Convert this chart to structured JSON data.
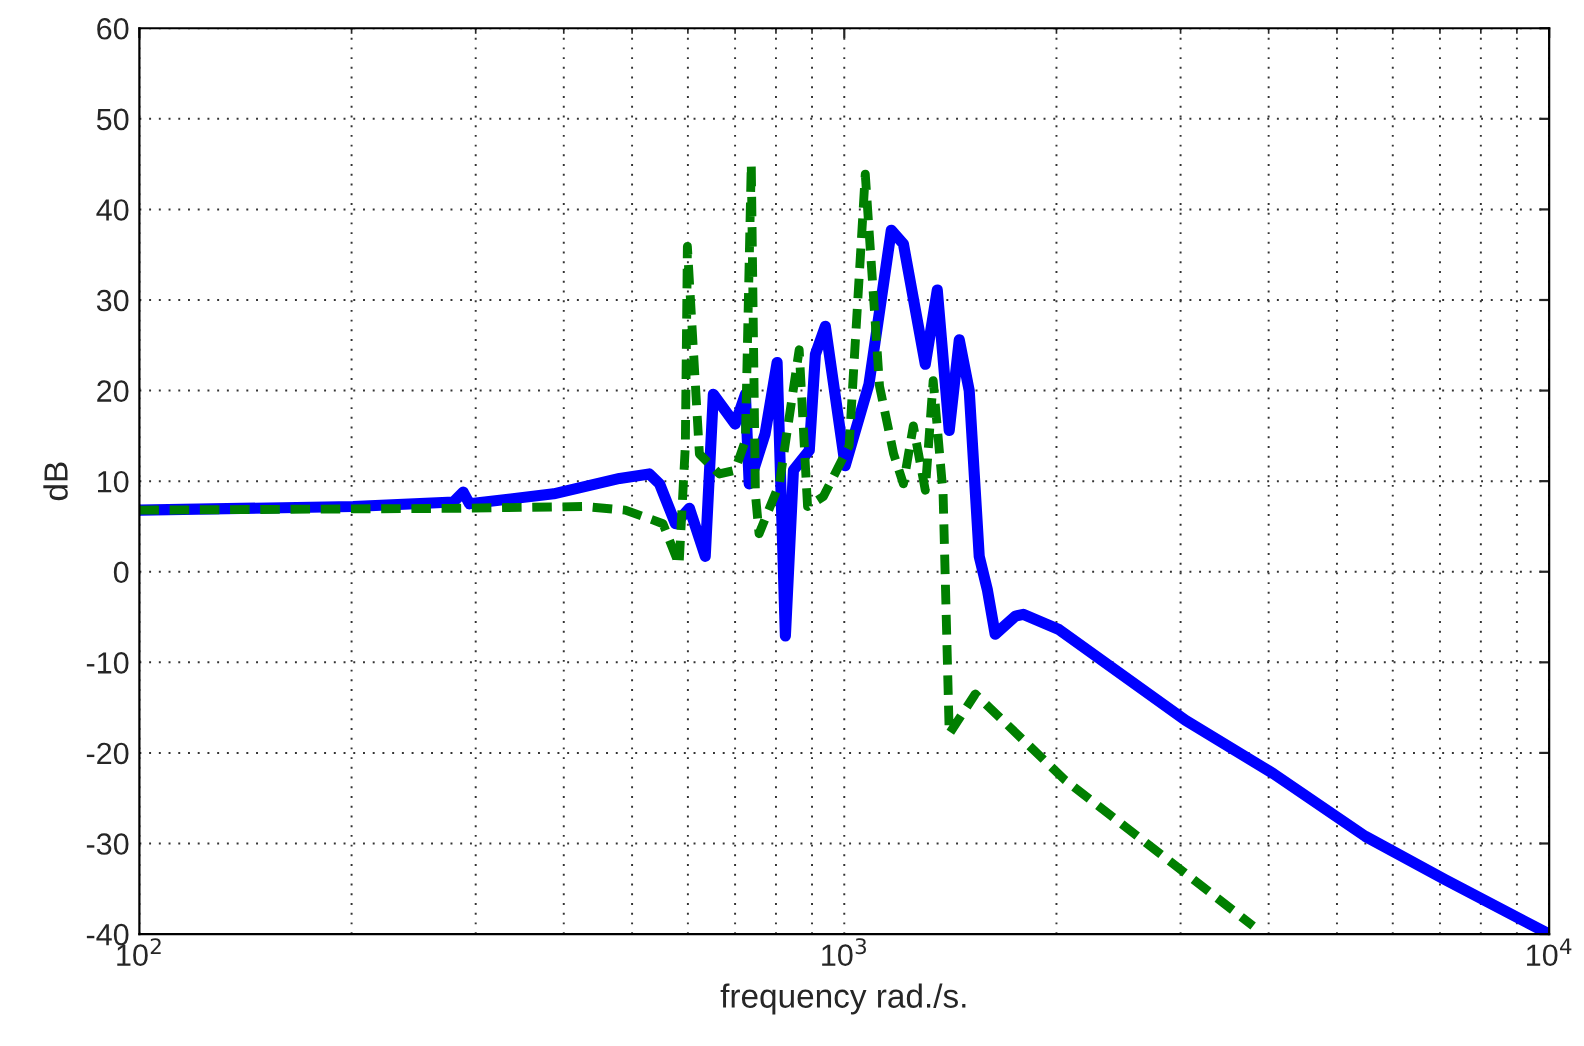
{
  "chart_data": {
    "type": "line",
    "xlabel": "frequency rad./s.",
    "ylabel": "dB",
    "log": "x",
    "grid": true,
    "xlim": [
      100,
      10000
    ],
    "xticks": [
      {
        "value": 100,
        "label": "10$^{2}$"
      },
      {
        "value": 1000,
        "label": "10$^{3}$"
      },
      {
        "value": 10000,
        "label": "10$^{4}$"
      }
    ],
    "ylim": [
      -40,
      60
    ],
    "yticks": [
      -40,
      -30,
      -20,
      -10,
      0,
      10,
      20,
      30,
      40,
      50,
      60
    ],
    "series": [
      {
        "color": "#0000ff",
        "line_style": "solid",
        "x": [
          100,
          201,
          279,
          288,
          294,
          387,
          480,
          529,
          547,
          576,
          603,
          635,
          652,
          700,
          724,
          733,
          772,
          803,
          825,
          847,
          892,
          910,
          940,
          1003,
          1084,
          1166,
          1213,
          1303,
          1355,
          1409,
          1456,
          1504,
          1554,
          1596,
          1637,
          1749,
          1795,
          2018,
          3048,
          4064,
          5483,
          7118,
          10000
        ],
        "values": [
          6.8,
          7.2,
          7.7,
          8.8,
          7.5,
          8.6,
          10.3,
          10.8,
          9.7,
          5.3,
          7.0,
          1.7,
          19.6,
          16.3,
          19.6,
          9.7,
          15.2,
          23.1,
          -7.1,
          11.2,
          13.4,
          24,
          27.1,
          11.7,
          20.7,
          37.7,
          36.2,
          22.9,
          31.1,
          15.6,
          25.6,
          20,
          1.7,
          -2,
          -6.9,
          -4.9,
          -4.7,
          -6.4,
          -16.4,
          -22.3,
          -29.2,
          -34,
          -40
        ]
      },
      {
        "color": "#007f00",
        "line_style": "dashed",
        "x": [
          100,
          279,
          429,
          489,
          536,
          553,
          583,
          595,
          599,
          623,
          665,
          700,
          724,
          738,
          748,
          757,
          809,
          863,
          887,
          934,
          1016,
          1071,
          1122,
          1175,
          1213,
          1253,
          1303,
          1337,
          1381,
          1409,
          1534,
          2057,
          3802
        ],
        "values": [
          6.8,
          7.0,
          7.2,
          6.8,
          5.7,
          5.3,
          0.8,
          13.9,
          35.9,
          13.0,
          10.8,
          11.2,
          14.5,
          45.0,
          8.6,
          4.2,
          9.7,
          24.5,
          7.2,
          8.3,
          13.9,
          43.9,
          20.5,
          13.0,
          9.7,
          16.1,
          9.0,
          21.1,
          8.6,
          -17.9,
          -13.5,
          -23.0,
          -39.1
        ]
      }
    ]
  }
}
